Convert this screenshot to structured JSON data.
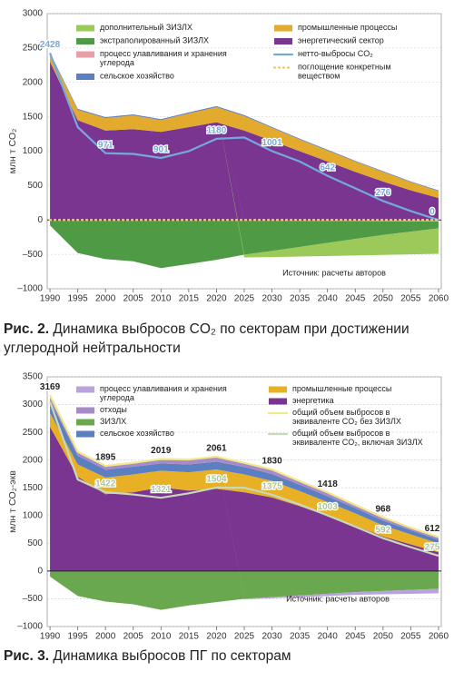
{
  "chart_data": [
    {
      "type": "stacked_area",
      "caption_label": "Рис. 2.",
      "caption": "Динамика выбросов CO₂ по секторам при достижении углеродной нейтральности",
      "y_label": "млн т CO₂",
      "source": "Источник: расчеты авторов",
      "x": [
        1990,
        1995,
        2000,
        2005,
        2010,
        2015,
        2020,
        2025,
        2030,
        2035,
        2040,
        2045,
        2050,
        2055,
        2060
      ],
      "xlim": [
        1989.5,
        2060.5
      ],
      "xticks": [
        1990,
        1995,
        2000,
        2005,
        2010,
        2015,
        2020,
        2025,
        2030,
        2035,
        2040,
        2045,
        2050,
        2055,
        2060
      ],
      "ylim": [
        -1000,
        3000
      ],
      "yticks": [
        {
          "value": -1000,
          "label": "–1000"
        },
        {
          "value": -500,
          "label": "–500"
        },
        0,
        500,
        1000,
        1500,
        2000,
        2500,
        3000
      ],
      "grid": true,
      "series": [
        {
          "name": "дополнительный ЗИЗЛХ",
          "type": "area",
          "color": "#9bc95a",
          "values": [
            0,
            0,
            0,
            0,
            0,
            0,
            0,
            -40,
            -90,
            -140,
            -190,
            -240,
            -290,
            -330,
            -370
          ]
        },
        {
          "name": "экстраполированный ЗИЗЛХ",
          "type": "area",
          "color": "#4f9a45",
          "values": [
            -80,
            -480,
            -570,
            -600,
            -700,
            -640,
            -580,
            -500,
            -440,
            -380,
            -320,
            -260,
            -200,
            -150,
            -100
          ]
        },
        {
          "name": "процесс улавливания и хранения углерода",
          "type": "area",
          "color": "#e8a0a8",
          "values": [
            0,
            0,
            0,
            0,
            0,
            0,
            0,
            -5,
            -10,
            -12,
            -14,
            -16,
            -18,
            -20,
            -22
          ]
        },
        {
          "name": "сельское хозяйство",
          "type": "area",
          "color": "#5b7fc0",
          "values": [
            20,
            15,
            15,
            15,
            15,
            15,
            15,
            15,
            12,
            12,
            12,
            10,
            10,
            10,
            10
          ]
        },
        {
          "name": "промышленные процессы",
          "type": "area",
          "color": "#e3ab2e",
          "values": [
            110,
            150,
            180,
            200,
            170,
            200,
            220,
            210,
            190,
            170,
            160,
            150,
            140,
            120,
            100
          ]
        },
        {
          "name": "энергетический сектор",
          "type": "area",
          "color": "#7a3591",
          "values": [
            2300,
            1450,
            1300,
            1320,
            1280,
            1350,
            1420,
            1300,
            1150,
            1000,
            850,
            700,
            560,
            430,
            320
          ]
        },
        {
          "name": "нетто-выбросы CO₂",
          "type": "line",
          "color": "#74a9dc",
          "values": [
            2428,
            1350,
            971,
            960,
            901,
            1000,
            1180,
            1200,
            1001,
            850,
            642,
            460,
            276,
            130,
            0
          ]
        },
        {
          "name": "поглощение конкретным веществом",
          "type": "line",
          "style": "dotted",
          "color": "#f0c56a",
          "values": [
            0,
            0,
            0,
            0,
            0,
            0,
            0,
            0,
            0,
            0,
            0,
            0,
            0,
            0,
            0
          ]
        }
      ],
      "annotations": [
        {
          "x": 1990,
          "value": 2428,
          "color": "#74a9dc"
        },
        {
          "x": 2000,
          "value": 971,
          "color": "#74a9dc"
        },
        {
          "x": 2010,
          "value": 901,
          "color": "#74a9dc"
        },
        {
          "x": 2020,
          "value": 1180,
          "color": "#74a9dc"
        },
        {
          "x": 2030,
          "value": 1001,
          "color": "#74a9dc"
        },
        {
          "x": 2040,
          "value": 642,
          "color": "#74a9dc"
        },
        {
          "x": 2050,
          "value": 276,
          "color": "#74a9dc"
        },
        {
          "x": 2060,
          "value": 0,
          "color": "#74a9dc"
        }
      ]
    },
    {
      "type": "stacked_area",
      "caption_label": "Рис. 3.",
      "caption": "Динамика выбросов ПГ по секторам",
      "y_label": "млн т CO₂-экв",
      "source": "Источник: расчеты авторов",
      "x": [
        1990,
        1995,
        2000,
        2005,
        2010,
        2015,
        2020,
        2025,
        2030,
        2035,
        2040,
        2045,
        2050,
        2055,
        2060
      ],
      "xlim": [
        1989.5,
        2060.5
      ],
      "xticks": [
        1990,
        1995,
        2000,
        2005,
        2010,
        2015,
        2020,
        2025,
        2030,
        2035,
        2040,
        2045,
        2050,
        2055,
        2060
      ],
      "ylim": [
        -1000,
        3500
      ],
      "yticks": [
        {
          "value": -1000,
          "label": "–1000"
        },
        {
          "value": -500,
          "label": "–500"
        },
        0,
        500,
        1000,
        1500,
        2000,
        2500,
        3000,
        3500
      ],
      "grid": true,
      "series": [
        {
          "name": "процесс улавливания и хранения углерода",
          "type": "area",
          "color": "#b9a3dc",
          "values": [
            0,
            0,
            0,
            0,
            0,
            0,
            0,
            -10,
            -20,
            -30,
            -40,
            -50,
            -60,
            -70,
            -80
          ]
        },
        {
          "name": "отходы",
          "type": "area",
          "color": "#a78bc9",
          "values": [
            60,
            60,
            70,
            80,
            80,
            90,
            90,
            85,
            80,
            75,
            70,
            65,
            60,
            55,
            50
          ]
        },
        {
          "name": "ЗИЗЛХ",
          "type": "area",
          "color": "#6aa84f",
          "values": [
            -100,
            -450,
            -550,
            -600,
            -700,
            -620,
            -560,
            -500,
            -470,
            -440,
            -410,
            -380,
            -360,
            -340,
            -320
          ]
        },
        {
          "name": "сельское хозяйство",
          "type": "area",
          "color": "#5b7fc0",
          "values": [
            230,
            160,
            140,
            140,
            130,
            140,
            140,
            135,
            125,
            115,
            105,
            95,
            85,
            75,
            65
          ]
        },
        {
          "name": "промышленные процессы",
          "type": "area",
          "color": "#e8b125",
          "values": [
            250,
            220,
            300,
            320,
            300,
            330,
            350,
            320,
            300,
            270,
            250,
            220,
            200,
            180,
            160
          ]
        },
        {
          "name": "энергетика",
          "type": "area",
          "color": "#7a3591",
          "values": [
            2600,
            1700,
            1385,
            1420,
            1509,
            1450,
            1481,
            1420,
            1325,
            1170,
            993,
            820,
            623,
            480,
            337
          ]
        },
        {
          "name": "общий объем выбросов в эквиваленте CO₂ без ЗИЗЛХ",
          "type": "line",
          "color": "#f2e98a",
          "values": [
            3169,
            2150,
            1895,
            1950,
            2019,
            2010,
            2061,
            1950,
            1830,
            1620,
            1418,
            1190,
            968,
            780,
            612
          ]
        },
        {
          "name": "общий объем выбросов в эквиваленте CO₂, включая ЗИЗЛХ",
          "type": "line",
          "color": "#c8d8b8",
          "values": [
            3050,
            1650,
            1422,
            1380,
            1321,
            1400,
            1504,
            1500,
            1375,
            1200,
            1003,
            800,
            592,
            430,
            275
          ]
        }
      ],
      "annotations": [
        {
          "x": 1990,
          "value": 3169,
          "color": "#222"
        },
        {
          "x": 2000,
          "value": 1895,
          "color": "#222"
        },
        {
          "x": 2010,
          "value": 2019,
          "color": "#222"
        },
        {
          "x": 2020,
          "value": 2061,
          "color": "#222"
        },
        {
          "x": 2030,
          "value": 1830,
          "color": "#222"
        },
        {
          "x": 2040,
          "value": 1418,
          "color": "#222"
        },
        {
          "x": 2050,
          "value": 968,
          "color": "#222"
        },
        {
          "x": 2060,
          "value": 612,
          "color": "#222"
        },
        {
          "x": 2000,
          "value": 1422,
          "color": "#a9c79a"
        },
        {
          "x": 2010,
          "value": 1321,
          "color": "#a9c79a"
        },
        {
          "x": 2020,
          "value": 1504,
          "color": "#a9c79a"
        },
        {
          "x": 2030,
          "value": 1375,
          "color": "#a9c79a"
        },
        {
          "x": 2040,
          "value": 1003,
          "color": "#a9c79a"
        },
        {
          "x": 2050,
          "value": 592,
          "color": "#a9c79a"
        },
        {
          "x": 2060,
          "value": 275,
          "color": "#a9c79a"
        }
      ]
    }
  ]
}
